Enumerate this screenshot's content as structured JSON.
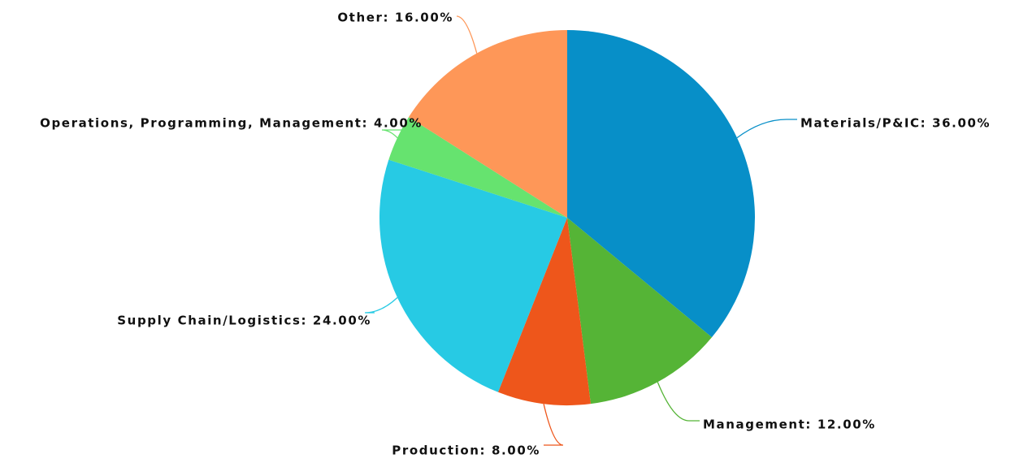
{
  "chart_data": {
    "type": "pie",
    "values": [
      36,
      12,
      8,
      24,
      4,
      16
    ],
    "value_labels": [
      "Materials/P&IC: 36.00%",
      "Management: 12.00%",
      "Production: 8.00%",
      "Supply Chain/Logistics: 24.00%",
      "Operations, Programming, Management: 4.00%",
      "Other: 16.00%"
    ],
    "colors": [
      "#078fc8",
      "#55b436",
      "#ee561b",
      "#27cae4",
      "#66e36f",
      "#fe9758"
    ]
  }
}
